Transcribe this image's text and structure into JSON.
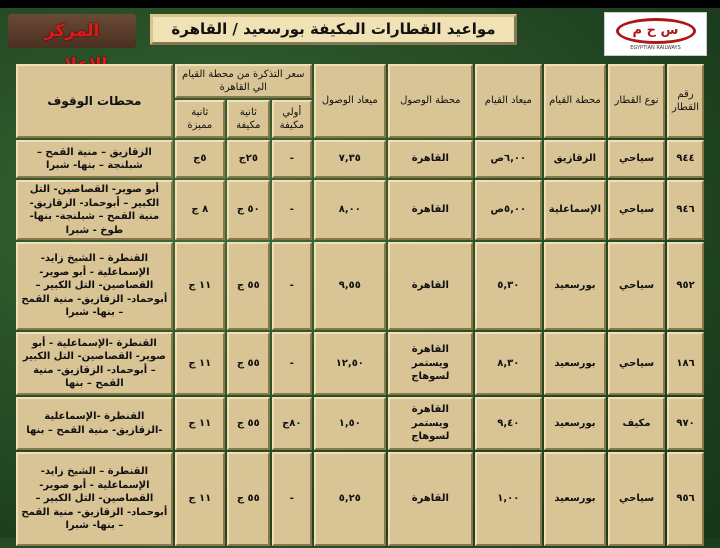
{
  "header": {
    "media_center": "المركز الإعلامي",
    "title": "مواعيد القطارات المكيفة بورسعيد / القاهرة",
    "logo_text": "EGYPTIAN RAILWAYS"
  },
  "columns": {
    "number": "رقم القطار",
    "type": "نوع القطار",
    "dep_station": "محطة القيام",
    "dep_time": "ميعاد القيام",
    "arr_station": "محطة الوصول",
    "arr_time": "ميعاد الوصول",
    "price_group": "سعر التذكرة من محطة القيام الي القاهرة",
    "first_ac": "أولي مكيفة",
    "second_ac": "ثانية مكيفة",
    "second_special": "ثانية مميزة",
    "stops": "محطات الوقوف"
  },
  "rows": [
    {
      "number": "٩٤٤",
      "type": "سياحي",
      "dep_station": "الزقازيق",
      "dep_time": "٦,٠٠ص",
      "arr_station": "القاهرة",
      "arr_time": "٧,٣٥",
      "first_ac": "-",
      "second_ac": "٢٥ج",
      "second_special": "٥ج",
      "stops": "الزقازيق – منية القمح – شبلنجة – بنها- شبرا"
    },
    {
      "number": "٩٤٦",
      "type": "سياحي",
      "dep_station": "الإسماعلية",
      "dep_time": "٥,٠٠ص",
      "arr_station": "القاهرة",
      "arr_time": "٨,٠٠",
      "first_ac": "-",
      "second_ac": "٥٠ ج",
      "second_special": "٨ ج",
      "stops": "أبو صوير- القصاصين- التل الكبير – أبوحماد- الزقازيق- منية القمح – شبلنجة- بنها- طوخ - شبرا"
    },
    {
      "number": "٩٥٢",
      "type": "سياحي",
      "dep_station": "بورسعيد",
      "dep_time": "٥,٣٠",
      "arr_station": "القاهرة",
      "arr_time": "٩,٥٥",
      "first_ac": "-",
      "second_ac": "٥٥ ج",
      "second_special": "١١ ج",
      "stops": "القنطرة – الشيخ زايد- الإسماعلية - أبو صوير- القصاصين- التل الكبير – أبوحماد- الزقازيق- منية القمح – بنها- شبرا"
    },
    {
      "number": "١٨٦",
      "type": "سياحي",
      "dep_station": "بورسعيد",
      "dep_time": "٨,٣٠",
      "arr_station": "القاهرة ويستمر لسوهاج",
      "arr_time": "١٢,٥٠",
      "first_ac": "-",
      "second_ac": "٥٥ ج",
      "second_special": "١١ ج",
      "stops": "القنطرة -الإسماعلية - أبو صوير- القصاصين- التل الكبير – أبوحماد- الزقازيق- منية القمح – بنها"
    },
    {
      "number": "٩٧٠",
      "type": "مكيف",
      "dep_station": "بورسعيد",
      "dep_time": "٩,٤٠",
      "arr_station": "القاهرة ويستمر لسوهاج",
      "arr_time": "١,٥٠",
      "first_ac": "٨٠ج",
      "second_ac": "٥٥ ج",
      "second_special": "١١ ج",
      "stops": "القنطرة -الإسماعلية -الزقازيق- منية القمح – بنها"
    },
    {
      "number": "٩٥٦",
      "type": "سياحي",
      "dep_station": "بورسعيد",
      "dep_time": "١,٠٠",
      "arr_station": "القاهرة",
      "arr_time": "٥,٢٥",
      "first_ac": "-",
      "second_ac": "٥٥ ج",
      "second_special": "١١ ج",
      "stops": "القنطرة – الشيخ زايد- الإسماعلية - أبو صوير- القصاصين- التل الكبير – أبوحماد- الزقازيق- منية القمح – بنها- شبرا"
    }
  ]
}
